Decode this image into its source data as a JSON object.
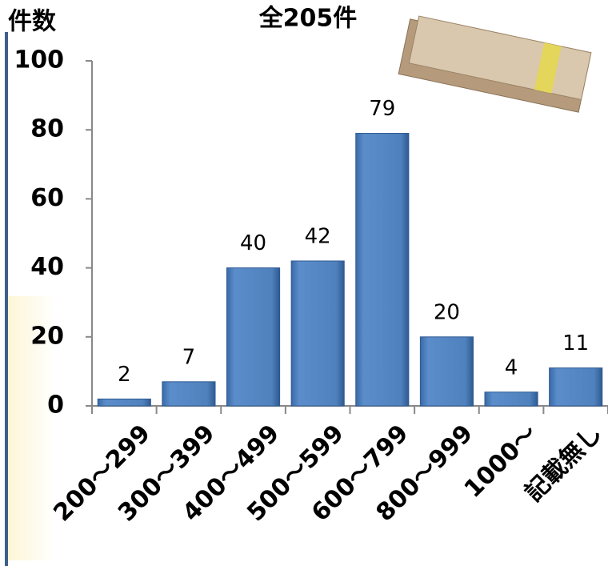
{
  "chart_data": {
    "type": "bar",
    "title": "全205件",
    "y_label": "件数",
    "categories": [
      "200～299",
      "300～399",
      "400～499",
      "500～599",
      "600～799",
      "800～999",
      "1000～",
      "記載無し"
    ],
    "values": [
      2,
      7,
      40,
      42,
      79,
      20,
      4,
      11
    ],
    "color": "#4f81bd",
    "ylim": [
      0,
      100
    ],
    "yticks": [
      0,
      20,
      40,
      60,
      80,
      100
    ],
    "grid": false
  }
}
